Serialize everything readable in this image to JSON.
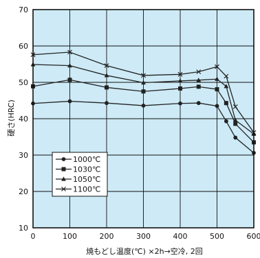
{
  "chart_data": {
    "type": "line",
    "xlabel": "焼もどし温度(℃) ×2h→空冷, 2回",
    "ylabel": "硬さ(HRC)",
    "xlim": [
      0,
      600
    ],
    "ylim": [
      10,
      70
    ],
    "x_ticks": [
      0,
      100,
      200,
      300,
      400,
      500,
      600
    ],
    "y_ticks": [
      10,
      20,
      30,
      40,
      50,
      60,
      70
    ],
    "x_tick_labels": [
      "0",
      "100",
      "200",
      "300",
      "400",
      "500",
      "600"
    ],
    "y_tick_labels": [
      "10",
      "20",
      "30",
      "40",
      "50",
      "60",
      "70"
    ],
    "grid": true,
    "legend_position": "bottom-left",
    "colors": {
      "plot_background": "#cdeaf6",
      "line": "#222222",
      "grid": "#111111"
    },
    "series": [
      {
        "name": "1000℃",
        "marker": "circle",
        "x": [
          0,
          100,
          200,
          300,
          400,
          450,
          500,
          525,
          550,
          600
        ],
        "y": [
          44.2,
          44.8,
          44.3,
          43.6,
          44.2,
          44.3,
          43.5,
          39.3,
          34.8,
          30.6
        ]
      },
      {
        "name": "1030℃",
        "marker": "square",
        "x": [
          0,
          100,
          200,
          300,
          400,
          450,
          500,
          525,
          550,
          600
        ],
        "y": [
          48.9,
          50.7,
          48.6,
          47.5,
          48.3,
          48.8,
          48.1,
          44.3,
          38.6,
          33.5
        ]
      },
      {
        "name": "1050℃",
        "marker": "triangle",
        "x": [
          0,
          100,
          200,
          300,
          400,
          450,
          500,
          525,
          550,
          600
        ],
        "y": [
          54.9,
          54.6,
          51.9,
          49.9,
          50.4,
          50.6,
          50.9,
          48.9,
          39.6,
          35.8
        ]
      },
      {
        "name": "1100℃",
        "marker": "x",
        "x": [
          0,
          100,
          200,
          300,
          400,
          450,
          500,
          525,
          550,
          600
        ],
        "y": [
          57.6,
          58.3,
          54.6,
          51.9,
          52.2,
          52.9,
          54.3,
          51.7,
          43.3,
          36.2
        ]
      }
    ]
  }
}
